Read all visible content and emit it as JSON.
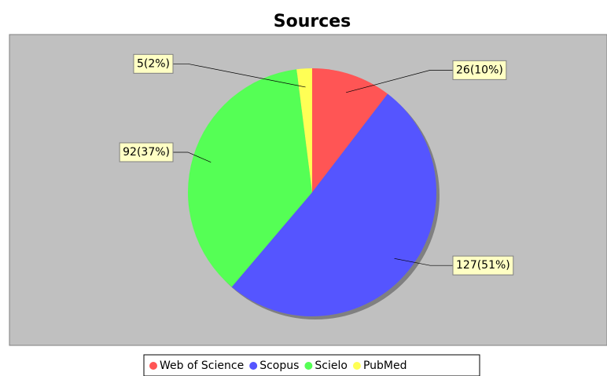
{
  "chart_data": {
    "type": "pie",
    "title": "Sources",
    "categories": [
      "Web of Science",
      "Scopus",
      "Scielo",
      "PubMed"
    ],
    "values": [
      26,
      127,
      92,
      5
    ],
    "value_labels": [
      "26(10%)",
      "127(51%)",
      "92(37%)",
      "5(2%)"
    ],
    "colors": [
      "#ff5555",
      "#5555ff",
      "#55ff55",
      "#ffff55"
    ],
    "legend": "bottom"
  }
}
